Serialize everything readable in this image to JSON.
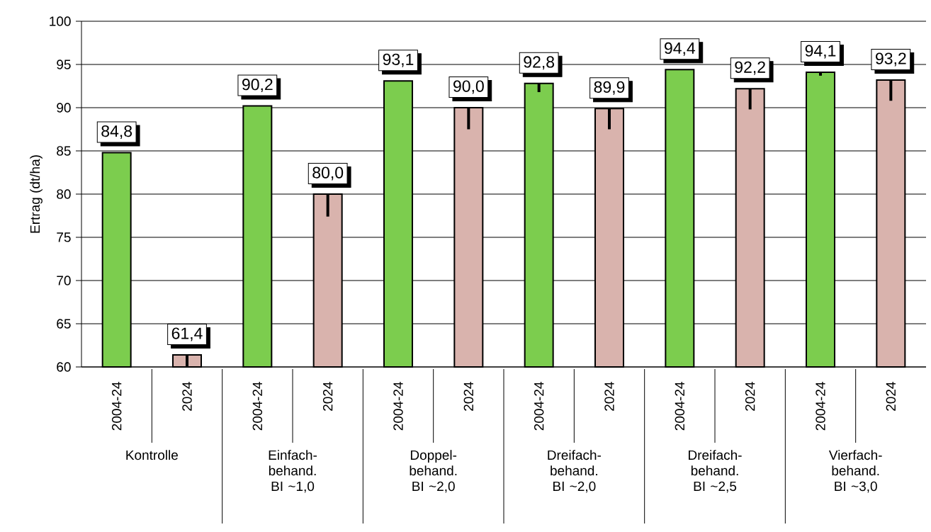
{
  "chart_data": {
    "type": "bar",
    "ylabel": "Ertrag (dt/ha)",
    "categories": [
      "2004-24",
      "2024",
      "2004-24",
      "2024",
      "2004-24",
      "2024",
      "2004-24",
      "2024",
      "2004-24",
      "2024",
      "2004-24",
      "2024"
    ],
    "values": [
      84.8,
      61.4,
      90.2,
      80.0,
      93.1,
      90.0,
      92.8,
      89.9,
      94.4,
      92.2,
      94.1,
      93.2
    ],
    "value_labels": [
      "84,8",
      "61,4",
      "90,2",
      "80,0",
      "93,1",
      "90,0",
      "92,8",
      "89,9",
      "94,4",
      "92,2",
      "94,1",
      "93,2"
    ],
    "colors": [
      "#7ccd4e",
      "#d9b3ad",
      "#7ccd4e",
      "#d9b3ad",
      "#7ccd4e",
      "#d9b3ad",
      "#7ccd4e",
      "#d9b3ad",
      "#7ccd4e",
      "#d9b3ad",
      "#7ccd4e",
      "#d9b3ad"
    ],
    "errors": [
      null,
      [
        60.0,
        61.4
      ],
      null,
      [
        77.4,
        80.0
      ],
      null,
      [
        87.5,
        90.0
      ],
      [
        91.8,
        92.8
      ],
      [
        87.5,
        89.9
      ],
      null,
      [
        89.8,
        92.2
      ],
      [
        93.7,
        94.1
      ],
      [
        90.8,
        93.2
      ]
    ],
    "ylim": [
      60,
      100
    ],
    "yticks": [
      60,
      65,
      70,
      75,
      80,
      85,
      90,
      95,
      100
    ],
    "grid": "y",
    "annotations": [
      "Kontrolle",
      "Einfach- behand. BI ~1,0",
      "Doppel- behand. BI ~2,0",
      "Dreifach- behand. BI ~2,0",
      "Dreifach- behand. BI ~2,5",
      "Vierfach- behand. BI ~3,0"
    ]
  }
}
